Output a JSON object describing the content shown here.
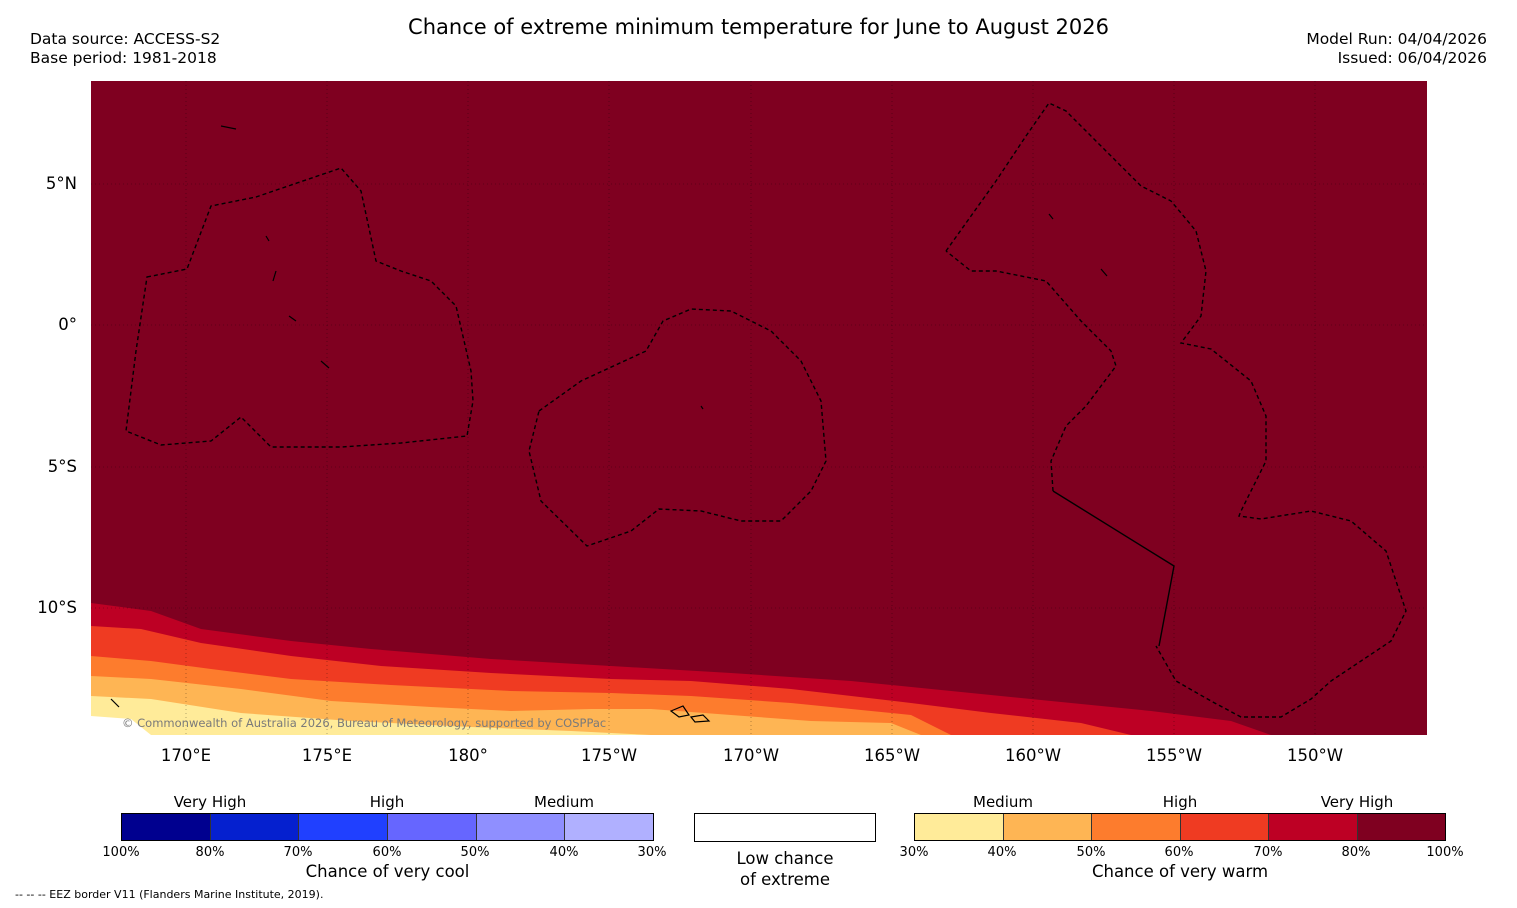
{
  "header": {
    "title": "Chance of extreme minimum temperature for June to August 2026",
    "data_source": "Data source: ACCESS-S2",
    "base_period": "Base period: 1981-2018",
    "model_run": "Model Run: 04/04/2026",
    "issued": "Issued: 06/04/2026"
  },
  "map": {
    "copyright": "© Commonwealth of Australia 2026, Bureau of Meteorology, supported by COSPPac",
    "lat_labels": [
      "5°N",
      "0°",
      "5°S",
      "10°S"
    ],
    "lon_labels": [
      "170°E",
      "175°E",
      "180°",
      "175°W",
      "170°W",
      "165°W",
      "160°W",
      "155°W",
      "150°W"
    ],
    "fill_color": "#7f0020"
  },
  "legend": {
    "cool": {
      "categories": [
        "Very High",
        "High",
        "Medium"
      ],
      "ticks": [
        "100%",
        "80%",
        "70%",
        "60%",
        "50%",
        "40%",
        "30%"
      ],
      "colors": [
        "#00008f",
        "#0520cf",
        "#2040ff",
        "#6666ff",
        "#8f8fff",
        "#b0b0ff"
      ],
      "caption": "Chance of very cool"
    },
    "low": {
      "line1": "Low chance",
      "line2": "of extreme"
    },
    "warm": {
      "categories": [
        "Medium",
        "High",
        "Very High"
      ],
      "ticks": [
        "30%",
        "40%",
        "50%",
        "60%",
        "70%",
        "80%",
        "100%"
      ],
      "colors": [
        "#ffeb99",
        "#feb554",
        "#fd7c2d",
        "#ef3b22",
        "#bd0024",
        "#7f0020"
      ],
      "caption": "Chance of very warm"
    }
  },
  "footnote": "--  --  -- EEZ border V11 (Flanders Marine Institute, 2019)."
}
